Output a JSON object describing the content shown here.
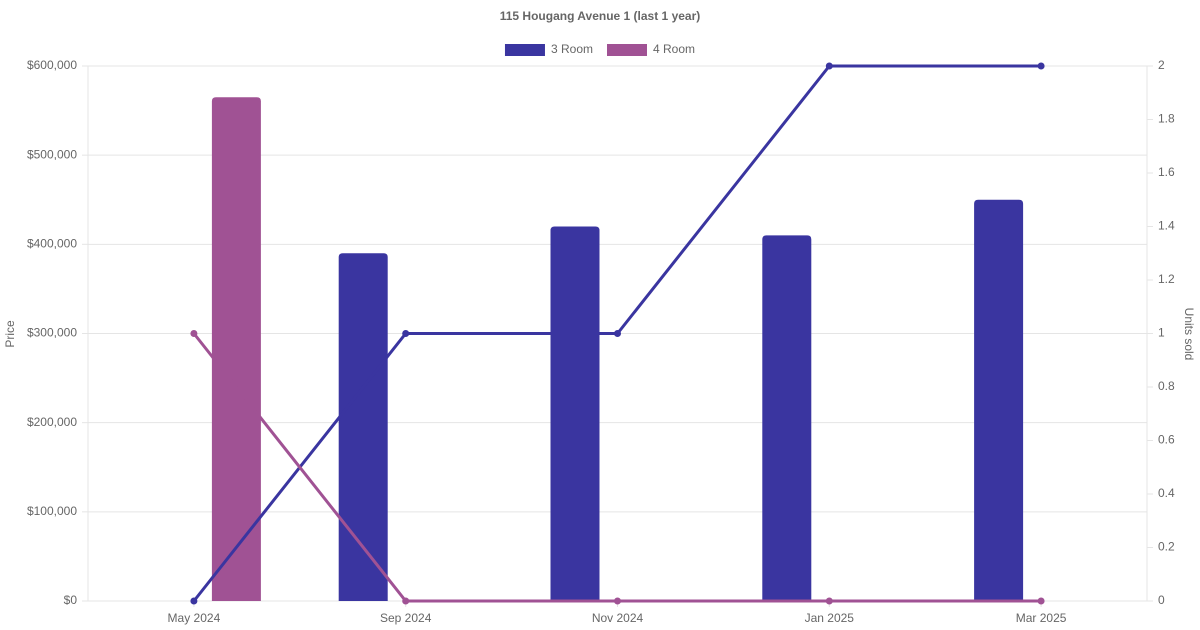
{
  "chart_data": {
    "type": "bar-line",
    "title": "115 Hougang Avenue 1 (last 1 year)",
    "y_label": "Price",
    "y2_label": "Units sold",
    "categories": [
      "May 2024",
      "Sep 2024",
      "Nov 2024",
      "Jan 2025",
      "Mar 2025"
    ],
    "series": [
      {
        "name": "3 Room",
        "color": "#3a35a0",
        "values": [
          null,
          390000,
          420000,
          410000,
          450000
        ],
        "units_sold": [
          0,
          1,
          1,
          2,
          2
        ]
      },
      {
        "name": "4 Room",
        "color": "#a05294",
        "values": [
          565000,
          null,
          null,
          null,
          null
        ],
        "units_sold": [
          1,
          0,
          0,
          0,
          0
        ]
      }
    ],
    "ylim": [
      0,
      600000
    ],
    "yticks": [
      {
        "value": 0,
        "label": "$0"
      },
      {
        "value": 100000,
        "label": "$100,000"
      },
      {
        "value": 200000,
        "label": "$200,000"
      },
      {
        "value": 300000,
        "label": "$300,000"
      },
      {
        "value": 400000,
        "label": "$400,000"
      },
      {
        "value": 500000,
        "label": "$500,000"
      },
      {
        "value": 600000,
        "label": "$600,000"
      }
    ],
    "y2lim": [
      0,
      2
    ],
    "y2ticks": [
      0,
      0.2,
      0.4,
      0.6,
      0.8,
      1,
      1.2,
      1.4,
      1.6,
      1.8,
      2
    ],
    "grid": true,
    "legend": "top"
  }
}
